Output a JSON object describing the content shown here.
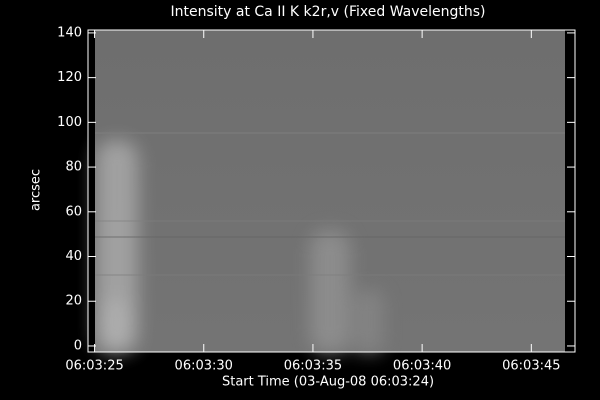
{
  "chart_data": {
    "type": "image",
    "title": "Intensity at Ca II K k2r,v (Fixed Wavelengths)",
    "ylabel": "arcsec",
    "xlabel": "Start Time (03-Aug-08 06:03:24)",
    "xlim": [
      24.7,
      47.0
    ],
    "ylim": [
      -2.7,
      141.3
    ],
    "xticks": [
      {
        "value": 25,
        "label": "06:03:25"
      },
      {
        "value": 30,
        "label": "06:03:30"
      },
      {
        "value": 35,
        "label": "06:03:35"
      },
      {
        "value": 40,
        "label": "06:03:40"
      },
      {
        "value": 45,
        "label": "06:03:45"
      }
    ],
    "yticks": [
      0,
      20,
      40,
      60,
      80,
      100,
      120,
      140
    ]
  }
}
